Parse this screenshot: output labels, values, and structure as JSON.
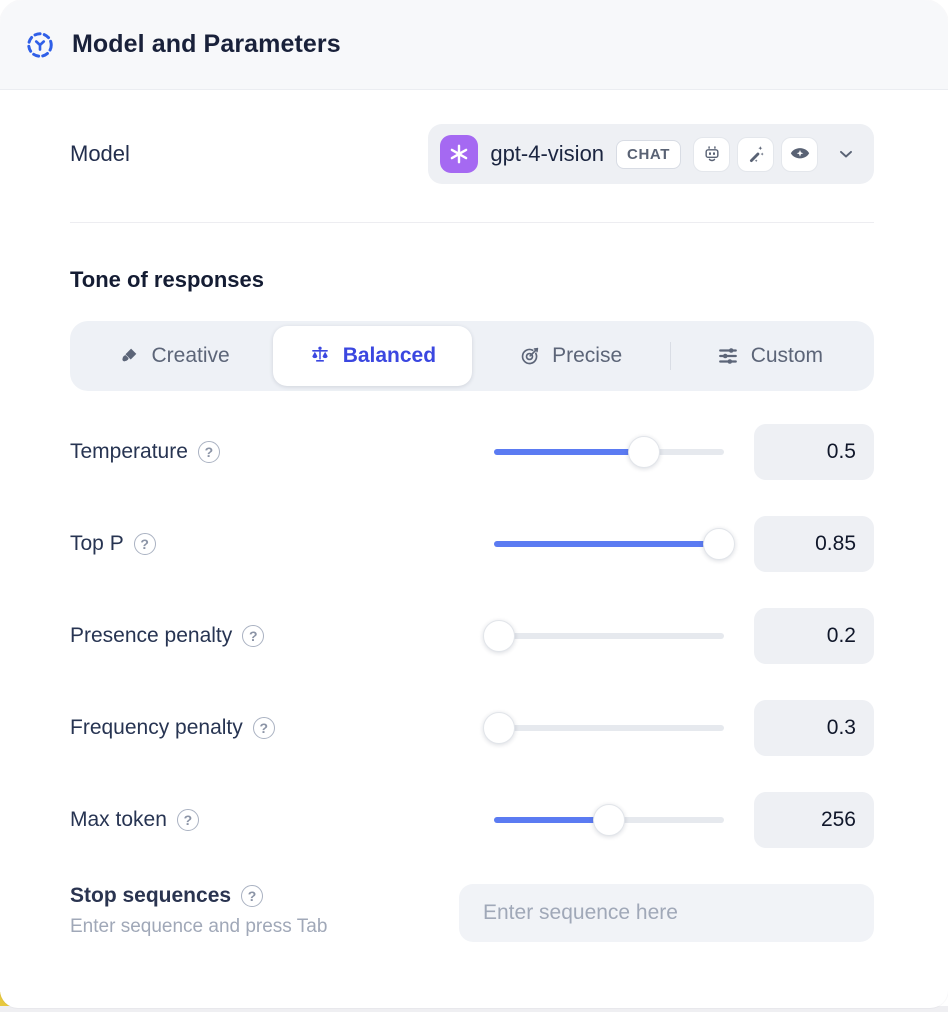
{
  "header": {
    "title": "Model and Parameters",
    "icon": "model-scope-icon"
  },
  "model": {
    "label": "Model",
    "selected": {
      "name": "gpt-4-vision",
      "provider_icon": "openai-logo",
      "type_badge": "CHAT",
      "capability_icons": [
        "robot-icon",
        "magic-wand-icon",
        "vision-eye-icon"
      ]
    },
    "chevron_icon": "chevron-down-icon"
  },
  "tone": {
    "heading": "Tone of responses",
    "tabs": [
      {
        "label": "Creative",
        "icon": "paintbrush-icon",
        "selected": false
      },
      {
        "label": "Balanced",
        "icon": "balance-scale-icon",
        "selected": true
      },
      {
        "label": "Precise",
        "icon": "target-icon",
        "selected": false
      },
      {
        "label": "Custom",
        "icon": "sliders-icon",
        "selected": false
      }
    ]
  },
  "help_icon_glyph": "?",
  "parameters": [
    {
      "label": "Temperature",
      "value": "0.5",
      "fill_pct": 65
    },
    {
      "label": "Top P",
      "value": "0.85",
      "fill_pct": 98
    },
    {
      "label": "Presence penalty",
      "value": "0.2",
      "fill_pct": 2
    },
    {
      "label": "Frequency penalty",
      "value": "0.3",
      "fill_pct": 2
    },
    {
      "label": "Max token",
      "value": "256",
      "fill_pct": 50
    }
  ],
  "stop_sequences": {
    "label": "Stop sequences",
    "hint": "Enter sequence and press Tab",
    "placeholder": "Enter sequence here"
  },
  "colors": {
    "accent_blue": "#2f5fe8",
    "selected_tab_blue": "#3b47e0",
    "slider_blue": "#5b7bf2",
    "provider_purple": "#a569f2"
  }
}
